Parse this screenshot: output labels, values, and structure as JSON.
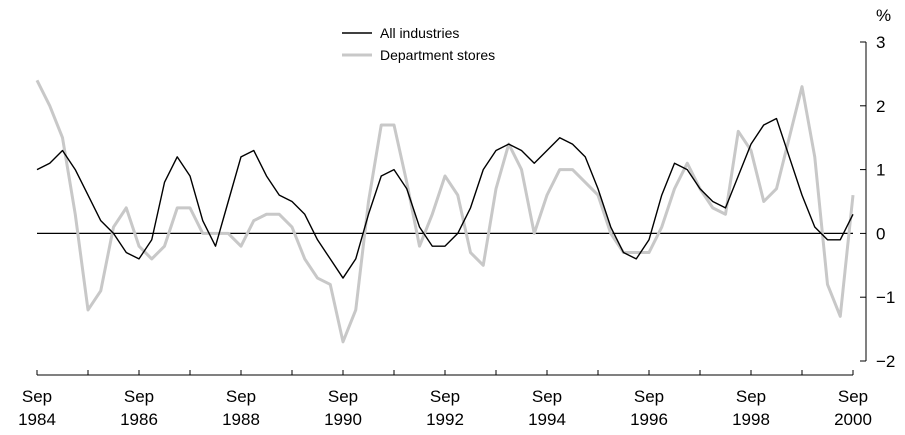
{
  "chart_data": {
    "type": "line",
    "title": "",
    "xlabel": "",
    "ylabel": "",
    "y_unit_label": "%",
    "y_axis_position": "right",
    "ylim": [
      -2,
      3
    ],
    "y_ticks": [
      3,
      2,
      1,
      0,
      -1,
      -2
    ],
    "y_tick_labels": [
      "3",
      "2",
      "1",
      "0",
      "−1",
      "−2"
    ],
    "x_start": "Sep 1984",
    "x_end": "Sep 2000",
    "x_step": "quarter",
    "x_ticks": [
      {
        "top": "Sep",
        "bottom": "1984",
        "index": 0
      },
      {
        "top": "Sep",
        "bottom": "1986",
        "index": 8
      },
      {
        "top": "Sep",
        "bottom": "1988",
        "index": 16
      },
      {
        "top": "Sep",
        "bottom": "1990",
        "index": 24
      },
      {
        "top": "Sep",
        "bottom": "1992",
        "index": 32
      },
      {
        "top": "Sep",
        "bottom": "1994",
        "index": 40
      },
      {
        "top": "Sep",
        "bottom": "1996",
        "index": 48
      },
      {
        "top": "Sep",
        "bottom": "1998",
        "index": 56
      },
      {
        "top": "Sep",
        "bottom": "2000",
        "index": 64
      }
    ],
    "legend_position": "top-center",
    "zero_line": true,
    "series": [
      {
        "name": "All industries",
        "color": "#000000",
        "values": [
          1.0,
          1.1,
          1.3,
          1.0,
          0.6,
          0.2,
          0.0,
          -0.3,
          -0.4,
          -0.1,
          0.8,
          1.2,
          0.9,
          0.2,
          -0.2,
          0.5,
          1.2,
          1.3,
          0.9,
          0.6,
          0.5,
          0.3,
          -0.1,
          -0.4,
          -0.7,
          -0.4,
          0.3,
          0.9,
          1.0,
          0.7,
          0.1,
          -0.2,
          -0.2,
          0.0,
          0.4,
          1.0,
          1.3,
          1.4,
          1.3,
          1.1,
          1.3,
          1.5,
          1.4,
          1.2,
          0.7,
          0.1,
          -0.3,
          -0.4,
          -0.1,
          0.6,
          1.1,
          1.0,
          0.7,
          0.5,
          0.4,
          0.9,
          1.4,
          1.7,
          1.8,
          1.2,
          0.6,
          0.1,
          -0.1,
          -0.1,
          0.3
        ]
      },
      {
        "name": "Department stores",
        "color": "#c8c8c8",
        "values": [
          2.4,
          2.0,
          1.5,
          0.3,
          -1.2,
          -0.9,
          0.1,
          0.4,
          -0.2,
          -0.4,
          -0.2,
          0.4,
          0.4,
          0.0,
          0.0,
          0.0,
          -0.2,
          0.2,
          0.3,
          0.3,
          0.1,
          -0.4,
          -0.7,
          -0.8,
          -1.7,
          -1.2,
          0.5,
          1.7,
          1.7,
          0.8,
          -0.2,
          0.3,
          0.9,
          0.6,
          -0.3,
          -0.5,
          0.7,
          1.4,
          1.0,
          0.0,
          0.6,
          1.0,
          1.0,
          0.8,
          0.6,
          0.0,
          -0.3,
          -0.3,
          -0.3,
          0.1,
          0.7,
          1.1,
          0.7,
          0.4,
          0.3,
          1.6,
          1.3,
          0.5,
          0.7,
          1.5,
          2.3,
          1.2,
          -0.8,
          -1.3,
          0.6
        ]
      }
    ]
  }
}
